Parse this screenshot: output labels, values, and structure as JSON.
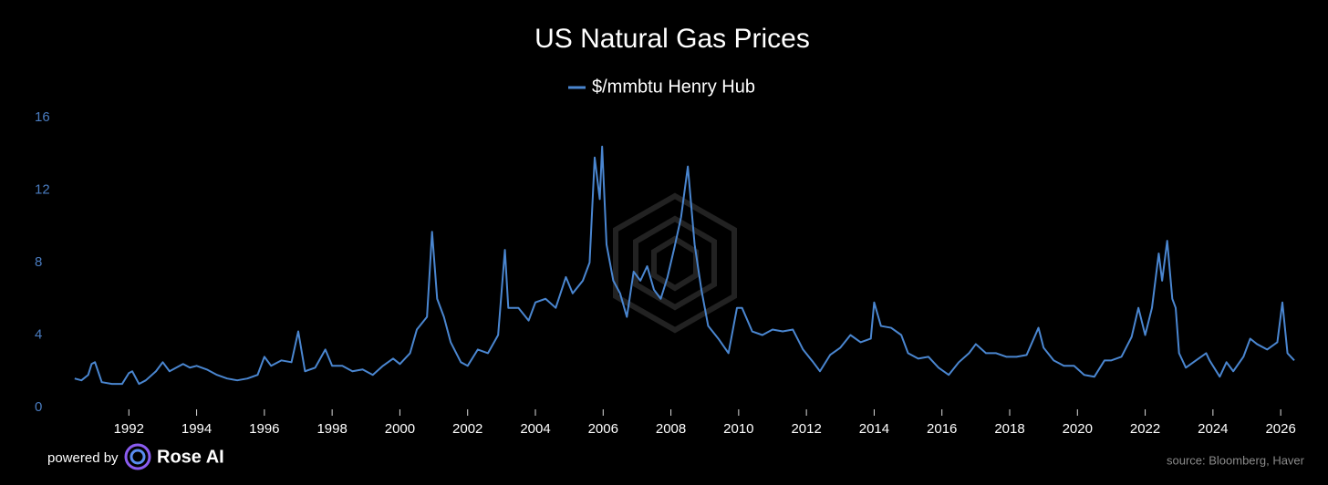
{
  "chart_data": {
    "type": "line",
    "title": "US Natural Gas Prices",
    "footer_left": "powered by",
    "brand": "Rose AI",
    "source": "source: Bloomberg, Haver",
    "xlim": [
      1990.35,
      2026.75
    ],
    "xticks": [
      1992,
      1994,
      1996,
      1998,
      2000,
      2002,
      2004,
      2006,
      2008,
      2010,
      2012,
      2014,
      2016,
      2018,
      2020,
      2022,
      2024,
      2026
    ],
    "ylim": [
      0,
      16
    ],
    "yticks": [
      0,
      4,
      8,
      12,
      16
    ],
    "x": [
      1990.4,
      1990.6,
      1990.8,
      1990.9,
      1991.0,
      1991.2,
      1991.5,
      1991.8,
      1992.0,
      1992.1,
      1992.3,
      1992.5,
      1992.8,
      1993.0,
      1993.2,
      1993.4,
      1993.6,
      1993.8,
      1994.0,
      1994.3,
      1994.6,
      1994.9,
      1995.2,
      1995.5,
      1995.8,
      1996.0,
      1996.2,
      1996.5,
      1996.8,
      1997.0,
      1997.2,
      1997.5,
      1997.8,
      1998.0,
      1998.3,
      1998.6,
      1998.9,
      1999.2,
      1999.5,
      1999.8,
      2000.0,
      2000.3,
      2000.5,
      2000.8,
      2000.95,
      2001.1,
      2001.3,
      2001.5,
      2001.8,
      2002.0,
      2002.3,
      2002.6,
      2002.9,
      2003.1,
      2003.2,
      2003.5,
      2003.8,
      2004.0,
      2004.3,
      2004.6,
      2004.9,
      2005.1,
      2005.4,
      2005.6,
      2005.75,
      2005.9,
      2005.97,
      2006.1,
      2006.3,
      2006.5,
      2006.7,
      2006.9,
      2007.1,
      2007.3,
      2007.5,
      2007.7,
      2007.9,
      2008.1,
      2008.3,
      2008.5,
      2008.7,
      2008.9,
      2009.1,
      2009.4,
      2009.7,
      2009.95,
      2010.1,
      2010.4,
      2010.7,
      2011.0,
      2011.3,
      2011.6,
      2011.9,
      2012.2,
      2012.4,
      2012.7,
      2013.0,
      2013.3,
      2013.6,
      2013.9,
      2014.0,
      2014.2,
      2014.5,
      2014.8,
      2015.0,
      2015.3,
      2015.6,
      2015.9,
      2016.2,
      2016.5,
      2016.8,
      2017.0,
      2017.3,
      2017.6,
      2017.9,
      2018.2,
      2018.5,
      2018.85,
      2019.0,
      2019.3,
      2019.6,
      2019.9,
      2020.2,
      2020.5,
      2020.8,
      2021.0,
      2021.3,
      2021.6,
      2021.8,
      2022.0,
      2022.2,
      2022.4,
      2022.5,
      2022.65,
      2022.8,
      2022.9,
      2023.0,
      2023.2,
      2023.5,
      2023.8,
      2023.9,
      2024.2,
      2024.4,
      2024.6,
      2024.9,
      2025.1,
      2025.3,
      2025.6,
      2025.9,
      2026.05,
      2026.2,
      2026.4
    ],
    "series": [
      {
        "name": "$/mmbtu Henry Hub",
        "color": "#4a86d0",
        "values": [
          1.6,
          1.5,
          1.8,
          2.4,
          2.5,
          1.4,
          1.3,
          1.3,
          1.9,
          2.0,
          1.3,
          1.5,
          2.0,
          2.5,
          2.0,
          2.2,
          2.4,
          2.2,
          2.3,
          2.1,
          1.8,
          1.6,
          1.5,
          1.6,
          1.8,
          2.8,
          2.3,
          2.6,
          2.5,
          4.2,
          2.0,
          2.2,
          3.2,
          2.3,
          2.3,
          2.0,
          2.1,
          1.8,
          2.3,
          2.7,
          2.4,
          3.0,
          4.3,
          5.0,
          9.7,
          6.0,
          5.0,
          3.6,
          2.5,
          2.3,
          3.2,
          3.0,
          4.0,
          8.7,
          5.5,
          5.5,
          4.8,
          5.8,
          6.0,
          5.5,
          7.2,
          6.3,
          7.0,
          8.0,
          13.8,
          11.5,
          14.4,
          9.0,
          7.0,
          6.3,
          5.0,
          7.5,
          7.0,
          7.8,
          6.5,
          6.0,
          7.2,
          8.8,
          10.5,
          13.3,
          9.0,
          6.5,
          4.5,
          3.8,
          3.0,
          5.5,
          5.5,
          4.2,
          4.0,
          4.3,
          4.2,
          4.3,
          3.2,
          2.5,
          2.0,
          2.9,
          3.3,
          4.0,
          3.6,
          3.8,
          5.8,
          4.5,
          4.4,
          4.0,
          3.0,
          2.7,
          2.8,
          2.2,
          1.8,
          2.5,
          3.0,
          3.5,
          3.0,
          3.0,
          2.8,
          2.8,
          2.9,
          4.4,
          3.3,
          2.6,
          2.3,
          2.3,
          1.8,
          1.7,
          2.6,
          2.6,
          2.8,
          3.9,
          5.5,
          4.0,
          5.5,
          8.5,
          7.0,
          9.2,
          6.0,
          5.5,
          3.0,
          2.2,
          2.6,
          3.0,
          2.6,
          1.7,
          2.5,
          2.0,
          2.8,
          3.8,
          3.5,
          3.2,
          3.6,
          5.8,
          3.0,
          2.6
        ]
      }
    ]
  }
}
